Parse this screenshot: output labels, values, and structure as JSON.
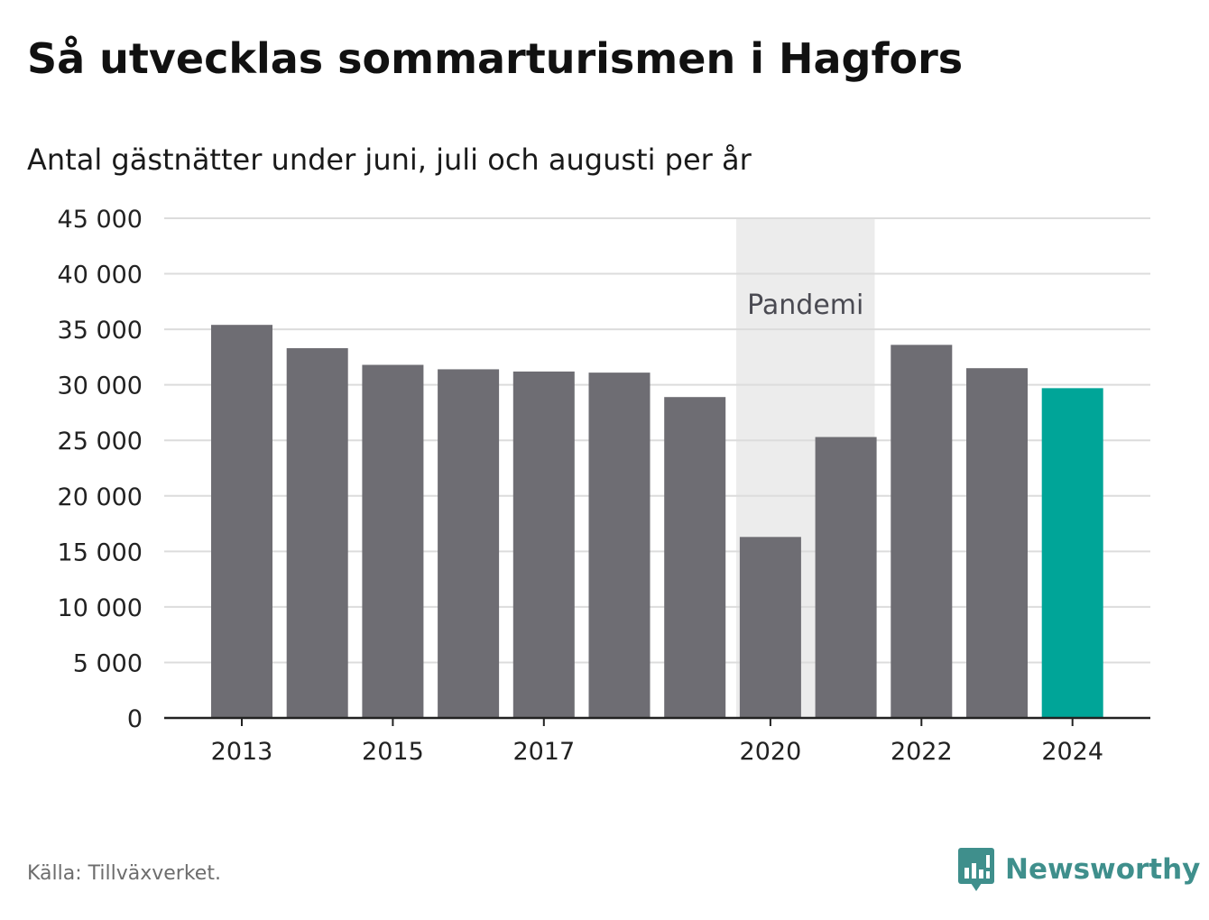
{
  "header": {
    "title": "Så utvecklas sommarturismen i Hagfors",
    "subtitle": "Antal gästnätter under juni, juli och augusti per år"
  },
  "chart_data": {
    "type": "bar",
    "categories": [
      "2013",
      "2014",
      "2015",
      "2016",
      "2017",
      "2018",
      "2019",
      "2020",
      "2021",
      "2022",
      "2023",
      "2024"
    ],
    "x_tick_labels": [
      "2013",
      "2015",
      "2017",
      "2020",
      "2022",
      "2024"
    ],
    "values": [
      35400,
      33300,
      31800,
      31400,
      31200,
      31100,
      28900,
      16300,
      25300,
      33600,
      31500,
      29700
    ],
    "ylim": [
      0,
      45000
    ],
    "y_ticks": [
      0,
      5000,
      10000,
      15000,
      20000,
      25000,
      30000,
      35000,
      40000,
      45000
    ],
    "y_tick_labels": [
      "0",
      "5 000",
      "10 000",
      "15 000",
      "20 000",
      "25 000",
      "30 000",
      "35 000",
      "40 000",
      "45 000"
    ],
    "grid": true,
    "highlight": {
      "category": "2024",
      "color": "#00a598"
    },
    "bar_color": "#6e6d73",
    "shaded_region": {
      "from": "2020",
      "to": "2021",
      "label": "Pandemi",
      "color": "#ececec"
    }
  },
  "footer": {
    "source": "Källa: Tillväxverket.",
    "brand": "Newsworthy",
    "brand_icon": "bar-chart-speech-bubble-icon",
    "brand_color": "#3f8f8c"
  }
}
